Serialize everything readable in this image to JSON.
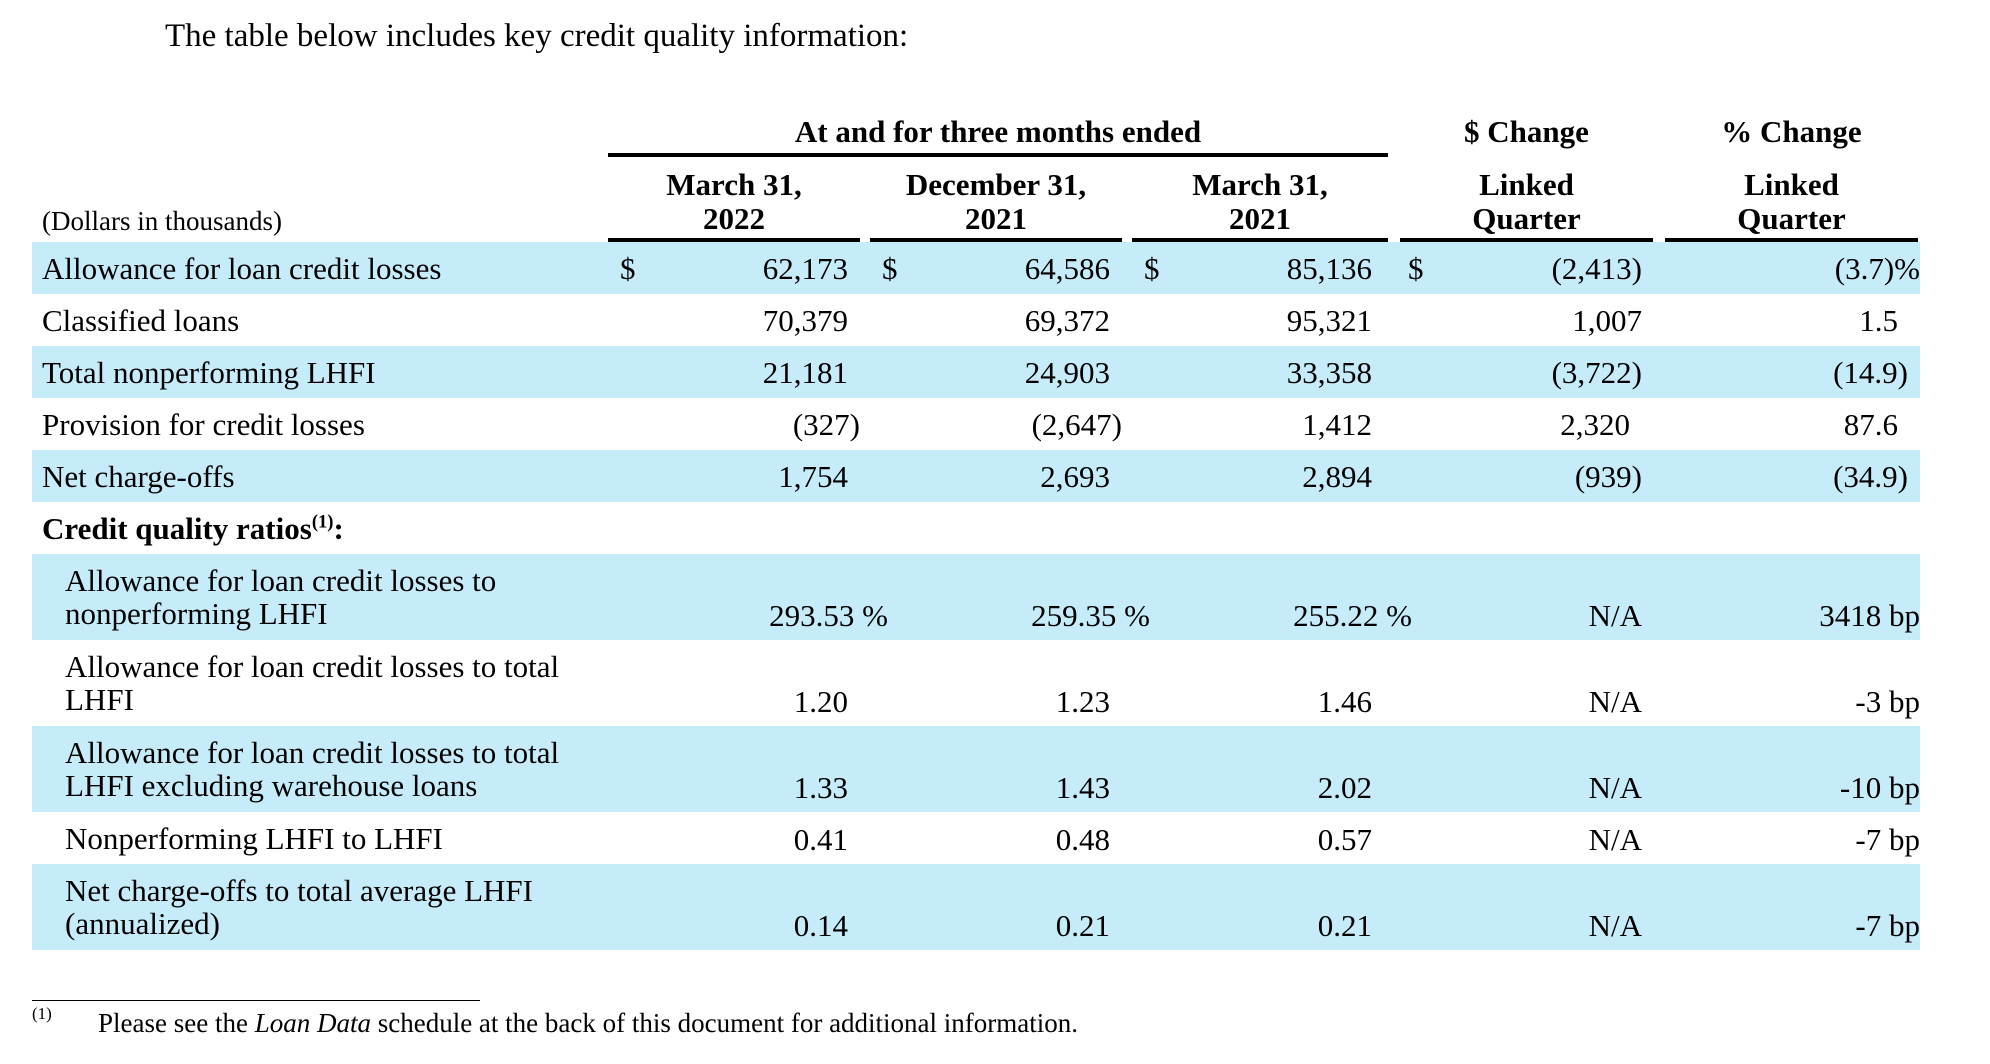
{
  "intro": "The table below includes key credit quality information:",
  "header": {
    "group": "At and for three months ended",
    "dollar_change": "$ Change",
    "pct_change": "% Change",
    "units": "(Dollars in thousands)",
    "columns": [
      {
        "line1": "March 31,",
        "line2": "2022"
      },
      {
        "line1": "December 31,",
        "line2": "2021"
      },
      {
        "line1": "March 31,",
        "line2": "2021"
      },
      {
        "line1": "Linked",
        "line2": "Quarter"
      },
      {
        "line1": "Linked",
        "line2": "Quarter"
      }
    ]
  },
  "currency_symbol": "$",
  "rows": [
    {
      "label": "Allowance for loan credit losses",
      "values": [
        "62,173",
        "64,586",
        "85,136",
        "(2,413)",
        "(3.7)%"
      ]
    },
    {
      "label": "Classified loans",
      "values": [
        "70,379",
        "69,372",
        "95,321",
        "1,007",
        "1.5"
      ]
    },
    {
      "label": "Total nonperforming LHFI",
      "values": [
        "21,181",
        "24,903",
        "33,358",
        "(3,722)",
        "(14.9)"
      ]
    },
    {
      "label": "Provision for credit losses",
      "values": [
        "(327)",
        "(2,647)",
        "1,412",
        "2,320",
        "87.6"
      ]
    },
    {
      "label": "Net charge-offs",
      "values": [
        "1,754",
        "2,693",
        "2,894",
        "(939)",
        "(34.9)"
      ]
    }
  ],
  "ratios_heading": "Credit quality ratios",
  "ratios_heading_footnote": "(1)",
  "ratios_heading_suffix": ":",
  "ratios": [
    {
      "label1": "Allowance for loan credit losses to",
      "label2": "nonperforming LHFI",
      "values": [
        "293.53 %",
        "259.35 %",
        "255.22 %",
        "N/A",
        "3418 bp"
      ]
    },
    {
      "label1": "Allowance for loan credit losses to total",
      "label2": "LHFI",
      "values": [
        "1.20",
        "1.23",
        "1.46",
        "N/A",
        "-3 bp"
      ]
    },
    {
      "label1": "Allowance for loan credit losses to total",
      "label2": "LHFI excluding warehouse loans",
      "values": [
        "1.33",
        "1.43",
        "2.02",
        "N/A",
        "-10 bp"
      ]
    },
    {
      "label1": "Nonperforming LHFI to LHFI",
      "label2": "",
      "values": [
        "0.41",
        "0.48",
        "0.57",
        "N/A",
        "-7 bp"
      ]
    },
    {
      "label1": "Net charge-offs to total average LHFI",
      "label2": "(annualized)",
      "values": [
        "0.14",
        "0.21",
        "0.21",
        "N/A",
        "-7 bp"
      ]
    }
  ],
  "footnote": {
    "mark": "(1)",
    "text_before": "Please see the ",
    "text_italic": "Loan Data",
    "text_after": " schedule at the back of this document for additional information."
  },
  "colors": {
    "shade": "#c6ecfa"
  }
}
